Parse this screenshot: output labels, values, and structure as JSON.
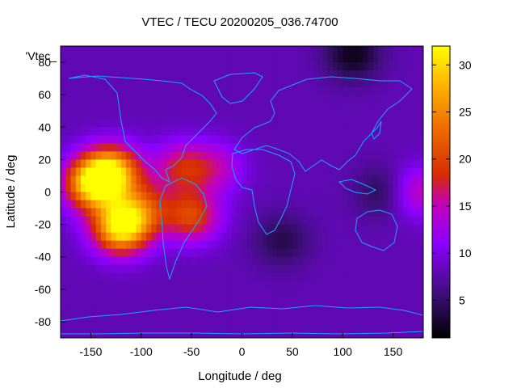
{
  "chart_data": {
    "type": "heatmap",
    "title": "VTEC / TECU 20200205_036.74700",
    "xlabel": "Longitude / deg",
    "ylabel": "Latitude / deg",
    "series_key": "'Vtec_",
    "xlim": [
      -180,
      180
    ],
    "ylim": [
      -90,
      90
    ],
    "xticks": [
      -150,
      -100,
      -50,
      0,
      50,
      100,
      150
    ],
    "yticks": [
      -80,
      -60,
      -40,
      -20,
      0,
      20,
      40,
      60,
      80
    ],
    "colorbar": {
      "min": 1,
      "max": 32,
      "ticks": [
        5,
        10,
        15,
        20,
        25,
        30
      ]
    },
    "background_vtec": 8,
    "anomalies": [
      {
        "lon": -120,
        "lat": -22,
        "vtec": 31
      },
      {
        "lon": -148,
        "lat": 5,
        "vtec": 29
      },
      {
        "lon": -128,
        "lat": 13,
        "vtec": 26
      },
      {
        "lon": -100,
        "lat": -10,
        "vtec": 18
      },
      {
        "lon": -60,
        "lat": 15,
        "vtec": 17
      },
      {
        "lon": -50,
        "lat": -15,
        "vtec": 20
      },
      {
        "lon": -25,
        "lat": 15,
        "vtec": 14
      },
      {
        "lon": 175,
        "lat": 0,
        "vtec": 15
      },
      {
        "lon": 110,
        "lat": 85,
        "vtec": 2
      },
      {
        "lon": 40,
        "lat": -30,
        "vtec": 4
      },
      {
        "lon": 140,
        "lat": 0,
        "vtec": 4
      }
    ]
  }
}
